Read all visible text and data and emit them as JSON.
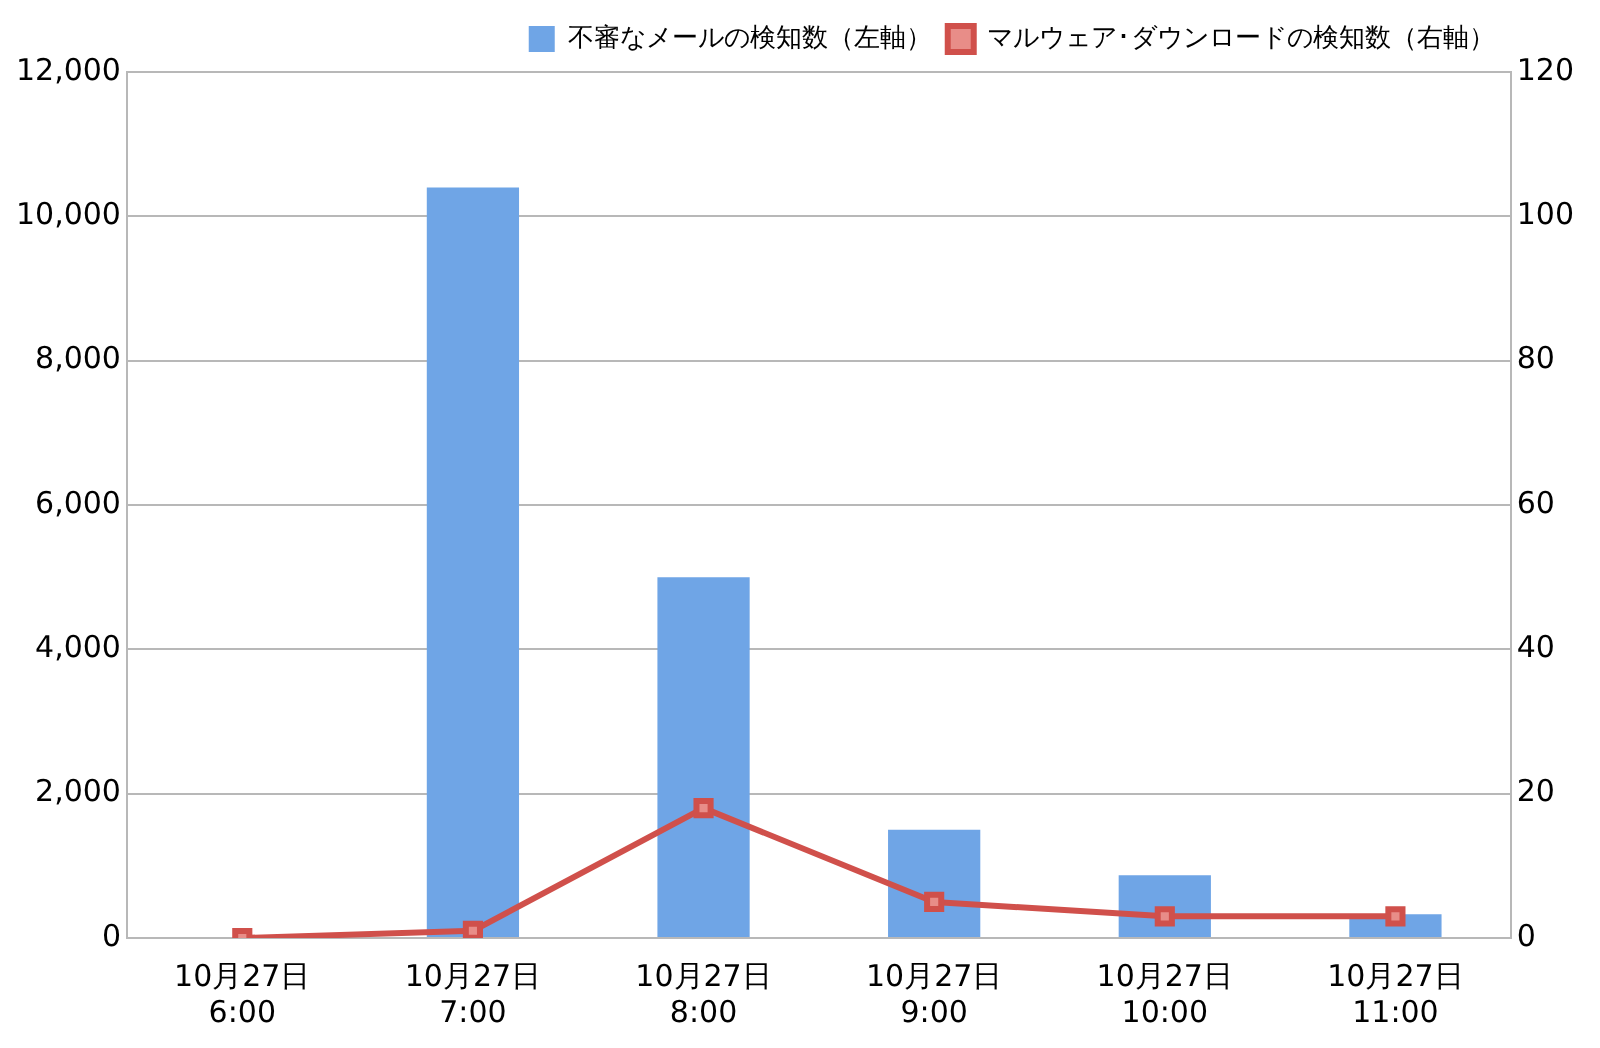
{
  "chart_data": {
    "type": "bar",
    "categories": [
      "10月27日\n6:00",
      "10月27日\n7:00",
      "10月27日\n8:00",
      "10月27日\n9:00",
      "10月27日\n10:00",
      "10月27日\n11:00"
    ],
    "series": [
      {
        "name": "不審なメールの検知数（左軸）",
        "color": "#6fa5e6",
        "values": [
          0,
          10400,
          5000,
          1500,
          870,
          330
        ]
      },
      {
        "name": "マルウェア･ダウンロードの検知数（右軸）",
        "type": "line",
        "axis": "y2",
        "color": "#d0504b",
        "values": [
          0,
          1,
          18,
          5,
          3,
          3
        ]
      }
    ],
    "ylim": [
      0,
      12000
    ],
    "yticks": [
      0,
      {
        "value": 2000,
        "label": "2,000"
      },
      {
        "value": 4000,
        "label": "4,000"
      },
      {
        "value": 6000,
        "label": "6,000"
      },
      {
        "value": 8000,
        "label": "8,000"
      },
      {
        "value": 10000,
        "label": "10,000"
      },
      {
        "value": 12000,
        "label": "12,000"
      }
    ],
    "y2lim": [
      0,
      120
    ],
    "y2ticks": [
      0,
      20,
      40,
      60,
      80,
      100,
      120
    ],
    "grid": "y",
    "legend": "top right",
    "marker": "square",
    "line_style": "solid"
  }
}
